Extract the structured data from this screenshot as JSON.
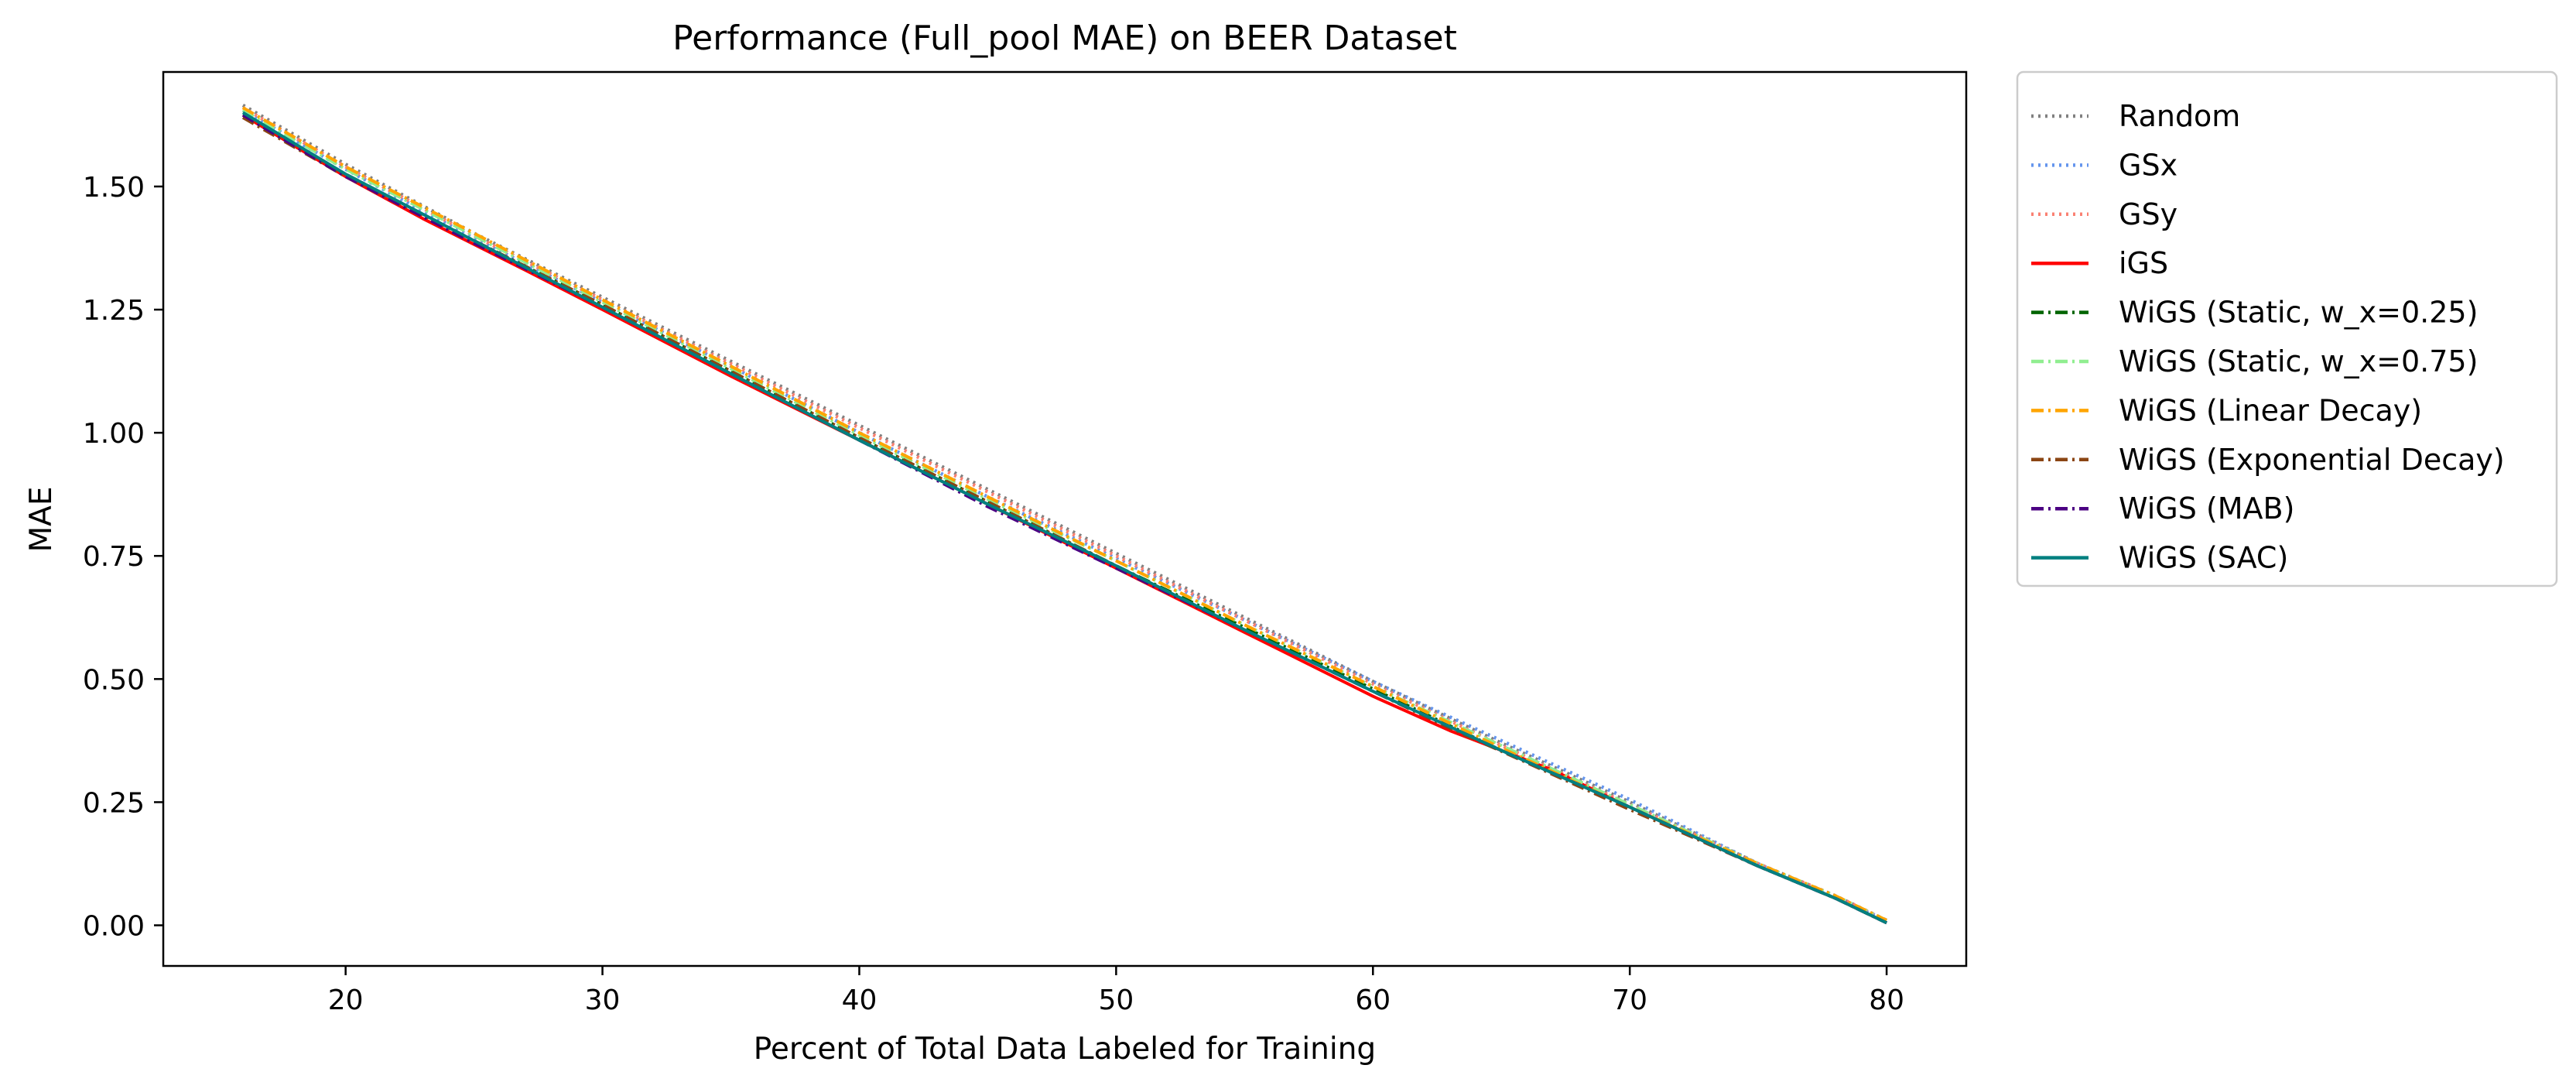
{
  "chart_data": {
    "type": "line",
    "title": "Performance (Full_pool MAE) on BEER Dataset",
    "xlabel": "Percent of Total Data Labeled for Training",
    "ylabel": "MAE",
    "xlim": [
      12.9,
      83.1
    ],
    "ylim": [
      -0.0825,
      1.7325
    ],
    "xticks": [
      20,
      30,
      40,
      50,
      60,
      70,
      80
    ],
    "yticks": [
      0.0,
      0.25,
      0.5,
      0.75,
      1.0,
      1.25,
      1.5
    ],
    "xtick_labels": [
      "20",
      "30",
      "40",
      "50",
      "60",
      "70",
      "80"
    ],
    "ytick_labels": [
      "0.00",
      "0.25",
      "0.50",
      "0.75",
      "1.00",
      "1.25",
      "1.50"
    ],
    "legend_position": "outside-right-top",
    "series": [
      {
        "name": "Random",
        "color": "#808080",
        "style": "dotted",
        "x": [
          16,
          20,
          25,
          30,
          35,
          40,
          45,
          50,
          55,
          60,
          65,
          70,
          75,
          78,
          80
        ],
        "y": [
          1.665,
          1.545,
          1.405,
          1.275,
          1.145,
          1.015,
          0.885,
          0.755,
          0.625,
          0.495,
          0.37,
          0.25,
          0.125,
          0.06,
          0.01
        ]
      },
      {
        "name": "GSx",
        "color": "#6495ED",
        "style": "dotted",
        "x": [
          16,
          20,
          25,
          30,
          35,
          40,
          45,
          50,
          55,
          60,
          65,
          70,
          75,
          78,
          80
        ],
        "y": [
          1.655,
          1.535,
          1.395,
          1.265,
          1.135,
          1.0,
          0.87,
          0.745,
          0.62,
          0.495,
          0.375,
          0.255,
          0.125,
          0.055,
          0.01
        ]
      },
      {
        "name": "GSy",
        "color": "#FA8072",
        "style": "dotted",
        "x": [
          16,
          20,
          25,
          30,
          35,
          40,
          45,
          50,
          55,
          60,
          65,
          70,
          75,
          78,
          80
        ],
        "y": [
          1.66,
          1.54,
          1.4,
          1.27,
          1.14,
          1.01,
          0.88,
          0.75,
          0.62,
          0.49,
          0.365,
          0.245,
          0.125,
          0.06,
          0.01
        ]
      },
      {
        "name": "iGS",
        "color": "#FF0000",
        "style": "solid",
        "x": [
          16,
          20,
          23,
          27,
          30,
          35,
          40,
          45,
          50,
          55,
          60,
          63,
          67,
          70,
          75,
          78,
          80
        ],
        "y": [
          1.645,
          1.52,
          1.435,
          1.33,
          1.25,
          1.115,
          0.985,
          0.855,
          0.725,
          0.595,
          0.465,
          0.395,
          0.315,
          0.24,
          0.12,
          0.055,
          0.005
        ]
      },
      {
        "name": "WiGS (Static, w_x=0.25)",
        "color": "#006400",
        "style": "dashdot",
        "x": [
          16,
          20,
          25,
          30,
          35,
          40,
          45,
          50,
          55,
          60,
          65,
          70,
          75,
          78,
          80
        ],
        "y": [
          1.645,
          1.525,
          1.39,
          1.26,
          1.125,
          0.99,
          0.86,
          0.73,
          0.605,
          0.48,
          0.355,
          0.24,
          0.12,
          0.055,
          0.005
        ]
      },
      {
        "name": "WiGS (Static, w_x=0.75)",
        "color": "#90EE90",
        "style": "dashdot",
        "x": [
          16,
          20,
          25,
          30,
          35,
          40,
          45,
          50,
          55,
          60,
          65,
          70,
          75,
          78,
          80
        ],
        "y": [
          1.655,
          1.535,
          1.4,
          1.265,
          1.13,
          0.995,
          0.865,
          0.74,
          0.61,
          0.485,
          0.365,
          0.245,
          0.125,
          0.06,
          0.01
        ]
      },
      {
        "name": "WiGS (Linear Decay)",
        "color": "#FFA500",
        "style": "dashdot",
        "x": [
          16,
          20,
          25,
          30,
          35,
          40,
          45,
          50,
          55,
          60,
          65,
          70,
          75,
          78,
          80
        ],
        "y": [
          1.66,
          1.54,
          1.405,
          1.27,
          1.135,
          1.0,
          0.87,
          0.74,
          0.61,
          0.485,
          0.36,
          0.24,
          0.125,
          0.06,
          0.01
        ]
      },
      {
        "name": "WiGS (Exponential Decay)",
        "color": "#8B4513",
        "style": "dashdot",
        "x": [
          16,
          20,
          25,
          30,
          35,
          40,
          45,
          50,
          55,
          60,
          63,
          66,
          70,
          75,
          78,
          80
        ],
        "y": [
          1.64,
          1.52,
          1.39,
          1.26,
          1.125,
          0.99,
          0.86,
          0.73,
          0.6,
          0.475,
          0.4,
          0.33,
          0.235,
          0.12,
          0.055,
          0.005
        ]
      },
      {
        "name": "WiGS (MAB)",
        "color": "#4B0082",
        "style": "dashdot",
        "x": [
          16,
          20,
          25,
          30,
          35,
          40,
          45,
          50,
          55,
          60,
          65,
          70,
          75,
          78,
          80
        ],
        "y": [
          1.645,
          1.52,
          1.385,
          1.255,
          1.12,
          0.985,
          0.85,
          0.725,
          0.6,
          0.475,
          0.355,
          0.24,
          0.12,
          0.055,
          0.005
        ]
      },
      {
        "name": "WiGS (SAC)",
        "color": "#008080",
        "style": "solid",
        "x": [
          16,
          20,
          25,
          30,
          35,
          40,
          45,
          50,
          55,
          60,
          65,
          70,
          75,
          78,
          80
        ],
        "y": [
          1.65,
          1.525,
          1.39,
          1.255,
          1.12,
          0.985,
          0.855,
          0.73,
          0.6,
          0.475,
          0.355,
          0.24,
          0.12,
          0.055,
          0.005
        ]
      }
    ]
  }
}
